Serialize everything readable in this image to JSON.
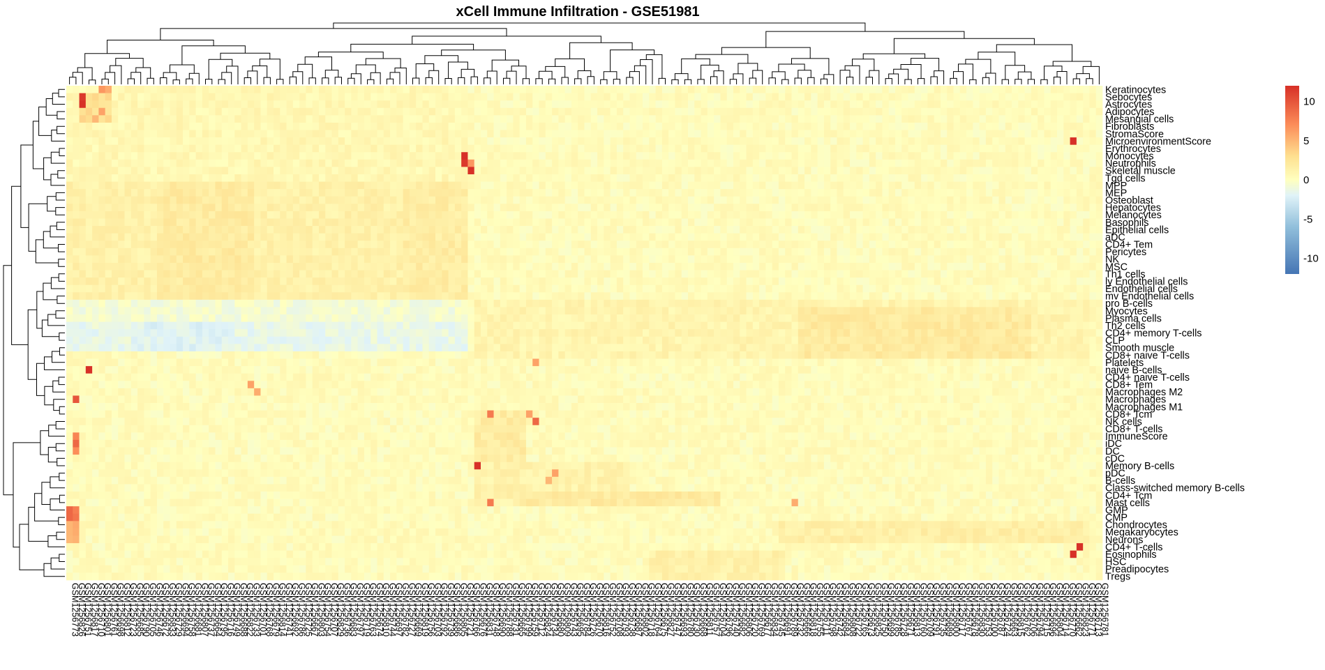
{
  "chart_data": {
    "type": "heatmap",
    "title": "xCell Immune Infiltration - GSE51981",
    "xlabel": "",
    "ylabel": "",
    "color_scale": {
      "min": -12,
      "max": 12,
      "stops": [
        {
          "value": -12,
          "color": "#4575b4"
        },
        {
          "value": -6,
          "color": "#91bfdb"
        },
        {
          "value": -2,
          "color": "#e0f3f8"
        },
        {
          "value": 0,
          "color": "#ffffbf"
        },
        {
          "value": 3,
          "color": "#fee090"
        },
        {
          "value": 7,
          "color": "#fc8d59"
        },
        {
          "value": 12,
          "color": "#d73027"
        }
      ],
      "ticks": [
        "10",
        "5",
        "0",
        "-5",
        "-10"
      ],
      "tick_values": [
        10,
        5,
        0,
        -5,
        -10
      ]
    },
    "rows": [
      "Keratinocytes",
      "Sebocytes",
      "Astrocytes",
      "Adipocytes",
      "Mesangial cells",
      "Fibroblasts",
      "StromaScore",
      "MicroenvironmentScore",
      "Erythrocytes",
      "Monocytes",
      "Neutrophils",
      "Skeletal muscle",
      "Tgd cells",
      "MPP",
      "MEP",
      "Osteoblast",
      "Hepatocytes",
      "Melanocytes",
      "Basophils",
      "Epithelial cells",
      "aDC",
      "CD4+ Tem",
      "Pericytes",
      "NK",
      "MSC",
      "Th1 cells",
      "ly Endothelial cells",
      "Endothelial cells",
      "mv Endothelial cells",
      "pro B-cells",
      "Myocytes",
      "Plasma cells",
      "Th2 cells",
      "CD4+ memory T-cells",
      "CLP",
      "Smooth muscle",
      "CD8+ naive T-cells",
      "Platelets",
      "naive B-cells",
      "CD4+ naive T-cells",
      "CD8+ Tem",
      "Macrophages M2",
      "Macrophages",
      "Macrophages M1",
      "CD8+ Tcm",
      "NK cells",
      "CD8+ T-cells",
      "ImmuneScore",
      "iDC",
      "DC",
      "cDC",
      "Memory B-cells",
      "pDC",
      "B-cells",
      "Class-switched memory B-cells",
      "CD4+ Tcm",
      "Mast cells",
      "GMP",
      "CMP",
      "Chondrocytes",
      "Megakaryocytes",
      "Neurons",
      "CD4+ T-cells",
      "Eosinophils",
      "HSC",
      "Preadipocytes",
      "Tregs"
    ],
    "columns": [
      "GSM1256773",
      "GSM1256826",
      "GSM1256751",
      "GSM1256817",
      "GSM1256710",
      "GSM1256801",
      "GSM1256761",
      "GSM1256698",
      "GSM1256812",
      "GSM1256723",
      "GSM1256685",
      "GSM1256790",
      "GSM1256705",
      "GSM1256746",
      "GSM1256672",
      "GSM1256833",
      "GSM1256729",
      "GSM1256694",
      "GSM1256758",
      "GSM1256681",
      "GSM1256807",
      "GSM1256737",
      "GSM1256664",
      "GSM1256795",
      "GSM1256716",
      "GSM1256749",
      "GSM1256688",
      "GSM1256822",
      "GSM1256733",
      "GSM1256701",
      "GSM1256768",
      "GSM1256679",
      "GSM1256814",
      "GSM1256741",
      "GSM1256692",
      "GSM1256786",
      "GSM1256725",
      "GSM1256667",
      "GSM1256803",
      "GSM1256754",
      "GSM1256707",
      "GSM1256829",
      "GSM1256736",
      "GSM1256683",
      "GSM1256797",
      "GSM1256719",
      "GSM1256763",
      "GSM1256674",
      "GSM1256810",
      "GSM1256744",
      "GSM1256697",
      "GSM1256782",
      "GSM1256727",
      "GSM1256669",
      "GSM1256819",
      "GSM1256756",
      "GSM1256703",
      "GSM1256792",
      "GSM1256739",
      "GSM1256686",
      "GSM1256805",
      "GSM1256721",
      "GSM1256766",
      "GSM1256676",
      "GSM1256831",
      "GSM1256748",
      "GSM1256690",
      "GSM1256788",
      "GSM1256731",
      "GSM1256665",
      "GSM1256799",
      "GSM1256759",
      "GSM1256712",
      "GSM1256824",
      "GSM1256734",
      "GSM1256680",
      "GSM1256809",
      "GSM1256743",
      "GSM1256695",
      "GSM1256784",
      "GSM1256726",
      "GSM1256670",
      "GSM1256816",
      "GSM1256752",
      "GSM1256708",
      "GSM1256793",
      "GSM1256738",
      "GSM1256687",
      "GSM1256802",
      "GSM1256718",
      "GSM1256764",
      "GSM1256675",
      "GSM1256827",
      "GSM1256747",
      "GSM1256693",
      "GSM1256780",
      "GSM1256730",
      "GSM1256668",
      "GSM1256811",
      "GSM1256757",
      "GSM1256704",
      "GSM1256796",
      "GSM1256740",
      "GSM1256682",
      "GSM1256806",
      "GSM1256720",
      "GSM1256769",
      "GSM1256677",
      "GSM1256834",
      "GSM1256745",
      "GSM1256691",
      "GSM1256789",
      "GSM1256732",
      "GSM1256666",
      "GSM1256818",
      "GSM1256755",
      "GSM1256711",
      "GSM1256798",
      "GSM1256742",
      "GSM1256684",
      "GSM1256808",
      "GSM1256722",
      "GSM1256765",
      "GSM1256673",
      "GSM1256825",
      "GSM1256750",
      "GSM1256699",
      "GSM1256785",
      "GSM1256728",
      "GSM1256671",
      "GSM1256813",
      "GSM1256760",
      "GSM1256709",
      "GSM1256791",
      "GSM1256735",
      "GSM1256689",
      "GSM1256800",
      "GSM1256717",
      "GSM1256767",
      "GSM1256678",
      "GSM1256830",
      "GSM1256753",
      "GSM1256700",
      "GSM1256787",
      "GSM1256724",
      "GSM1256663",
      "GSM1256815",
      "GSM1256762",
      "GSM1256706",
      "GSM1256794",
      "GSM1256715",
      "GSM1256696",
      "GSM1256804",
      "GSM1256714",
      "GSM1256770",
      "GSM1256662",
      "GSM1256823",
      "GSM1256771",
      "GSM1256713",
      "GSM1256781"
    ],
    "background_value": 0.3,
    "block_values": [
      {
        "rows": [
          0,
          12
        ],
        "cols": [
          0,
          61
        ],
        "value": 0.7
      },
      {
        "rows": [
          13,
          29
        ],
        "cols": [
          0,
          61
        ],
        "value": 1.3
      },
      {
        "rows": [
          13,
          29
        ],
        "cols": [
          14,
          28
        ],
        "value": 1.9
      },
      {
        "rows": [
          13,
          29
        ],
        "cols": [
          52,
          61
        ],
        "value": 1.7
      },
      {
        "rows": [
          29,
          31
        ],
        "cols": [
          0,
          61
        ],
        "value": -0.7
      },
      {
        "rows": [
          29,
          36
        ],
        "cols": [
          63,
          157
        ],
        "value": 1.0
      },
      {
        "rows": [
          30,
          36
        ],
        "cols": [
          113,
          148
        ],
        "value": 2.0
      },
      {
        "rows": [
          32,
          35
        ],
        "cols": [
          0,
          61
        ],
        "value": -1.4
      },
      {
        "rows": [
          32,
          35
        ],
        "cols": [
          10,
          25
        ],
        "value": -2.0
      },
      {
        "rows": [
          44,
          50
        ],
        "cols": [
          63,
          70
        ],
        "value": 1.8
      },
      {
        "rows": [
          51,
          56
        ],
        "cols": [
          63,
          86
        ],
        "value": 1.2
      },
      {
        "rows": [
          55,
          56
        ],
        "cols": [
          70,
          100
        ],
        "value": 2.0
      },
      {
        "rows": [
          59,
          61
        ],
        "cols": [
          110,
          157
        ],
        "value": 1.5
      },
      {
        "rows": [
          63,
          66
        ],
        "cols": [
          90,
          110
        ],
        "value": 1.3
      },
      {
        "rows": [
          57,
          59
        ],
        "cols": [
          0,
          1
        ],
        "value": 8.0
      },
      {
        "rows": [
          59,
          61
        ],
        "cols": [
          0,
          1
        ],
        "value": 5.5
      },
      {
        "rows": [
          1,
          4
        ],
        "cols": [
          2,
          6
        ],
        "value": 3.0
      }
    ],
    "highlight_cells": [
      {
        "row": "Sebocytes",
        "col": 2,
        "value": 11.5
      },
      {
        "row": "Astrocytes",
        "col": 2,
        "value": 12
      },
      {
        "row": "Keratinocytes",
        "col": 5,
        "value": 6.5
      },
      {
        "row": "Keratinocytes",
        "col": 6,
        "value": 5.5
      },
      {
        "row": "Adipocytes",
        "col": 5,
        "value": 6.0
      },
      {
        "row": "Mesangial cells",
        "col": 4,
        "value": 5.0
      },
      {
        "row": "MicroenvironmentScore",
        "col": 155,
        "value": 12
      },
      {
        "row": "Monocytes",
        "col": 61,
        "value": 12
      },
      {
        "row": "Neutrophils",
        "col": 61,
        "value": 11.5
      },
      {
        "row": "Neutrophils",
        "col": 62,
        "value": 6.5
      },
      {
        "row": "Skeletal muscle",
        "col": 62,
        "value": 12
      },
      {
        "row": "naive B-cells",
        "col": 3,
        "value": 12
      },
      {
        "row": "Macrophages",
        "col": 1,
        "value": 10
      },
      {
        "row": "CD8+ Tem",
        "col": 28,
        "value": 6.0
      },
      {
        "row": "Macrophages M2",
        "col": 29,
        "value": 5.5
      },
      {
        "row": "Platelets",
        "col": 72,
        "value": 6.0
      },
      {
        "row": "CD8+ Tcm",
        "col": 65,
        "value": 8.0
      },
      {
        "row": "CD8+ Tcm",
        "col": 71,
        "value": 6.0
      },
      {
        "row": "NK cells",
        "col": 72,
        "value": 9.0
      },
      {
        "row": "ImmuneScore",
        "col": 1,
        "value": 7.5
      },
      {
        "row": "iDC",
        "col": 1,
        "value": 9.0
      },
      {
        "row": "DC",
        "col": 1,
        "value": 7.0
      },
      {
        "row": "Memory B-cells",
        "col": 63,
        "value": 12
      },
      {
        "row": "pDC",
        "col": 75,
        "value": 6.0
      },
      {
        "row": "B-cells",
        "col": 74,
        "value": 5.0
      },
      {
        "row": "Mast cells",
        "col": 65,
        "value": 8.0
      },
      {
        "row": "Mast cells",
        "col": 112,
        "value": 5.5
      },
      {
        "row": "CD4+ T-cells",
        "col": 156,
        "value": 12
      },
      {
        "row": "Eosinophils",
        "col": 155,
        "value": 12
      },
      {
        "row": "GMP",
        "col": 0,
        "value": 9.0
      },
      {
        "row": "CMP",
        "col": 0,
        "value": 9.0
      }
    ]
  }
}
